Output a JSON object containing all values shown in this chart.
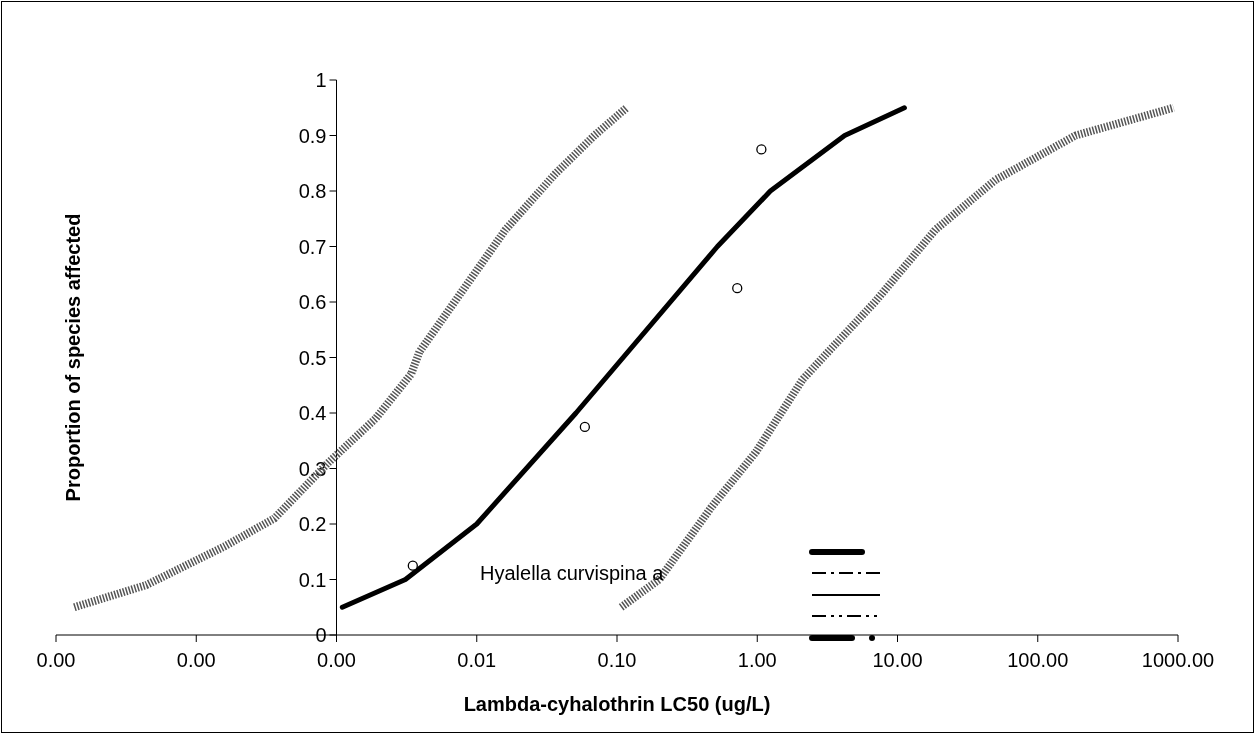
{
  "chart_data": {
    "type": "line",
    "xlabel": "Lambda-cyhalothrin LC50 (ug/L)",
    "ylabel": "Proportion of species affected",
    "log": "x",
    "xlim": [
      1e-05,
      1000
    ],
    "xticks": [
      {
        "value": 1e-05,
        "label": "0.00"
      },
      {
        "value": 0.0001,
        "label": "0.00"
      },
      {
        "value": 0.001,
        "label": "0.00"
      },
      {
        "value": 0.01,
        "label": "0.01"
      },
      {
        "value": 0.1,
        "label": "0.10"
      },
      {
        "value": 1,
        "label": "1.00"
      },
      {
        "value": 10,
        "label": "10.00"
      },
      {
        "value": 100,
        "label": "100.00"
      },
      {
        "value": 1000,
        "label": "1000.00"
      }
    ],
    "ylim": [
      0,
      1
    ],
    "yticks": [
      0,
      0.1,
      0.2,
      0.3,
      0.4,
      0.5,
      0.6,
      0.7,
      0.8,
      0.9,
      1
    ],
    "grid": false,
    "annotations": [
      "Hyalella curvispina a"
    ],
    "series": [
      {
        "color": "#000000",
        "line_style": "solid",
        "x": [
          0.0011,
          0.0031,
          0.01,
          0.051,
          0.52,
          1.24,
          4.2,
          11.2
        ],
        "values": [
          0.05,
          0.1,
          0.2,
          0.4,
          0.7,
          0.8,
          0.9,
          0.95
        ]
      },
      {
        "color": "#555555",
        "line_style": "dotted",
        "x": [
          1.35e-05,
          4.4e-05,
          0.00016,
          0.00036,
          0.00087,
          0.0019,
          0.0034,
          0.0039,
          0.0074,
          0.016,
          0.036,
          0.069,
          0.117
        ],
        "values": [
          0.05,
          0.09,
          0.16,
          0.21,
          0.31,
          0.39,
          0.47,
          0.51,
          0.61,
          0.73,
          0.83,
          0.9,
          0.95
        ]
      },
      {
        "color": "#555555",
        "line_style": "dotted",
        "x": [
          0.107,
          0.2,
          0.47,
          0.98,
          2.1,
          3.2,
          6.9,
          18.6,
          50,
          186,
          930
        ],
        "values": [
          0.05,
          0.1,
          0.23,
          0.33,
          0.46,
          0.51,
          0.6,
          0.73,
          0.82,
          0.9,
          0.95
        ]
      },
      {
        "type": "scatter",
        "color": "#000000",
        "marker": "circle",
        "x": [
          0.0035,
          0.059,
          0.72,
          1.07
        ],
        "values": [
          0.125,
          0.375,
          0.625,
          0.875
        ]
      }
    ]
  }
}
